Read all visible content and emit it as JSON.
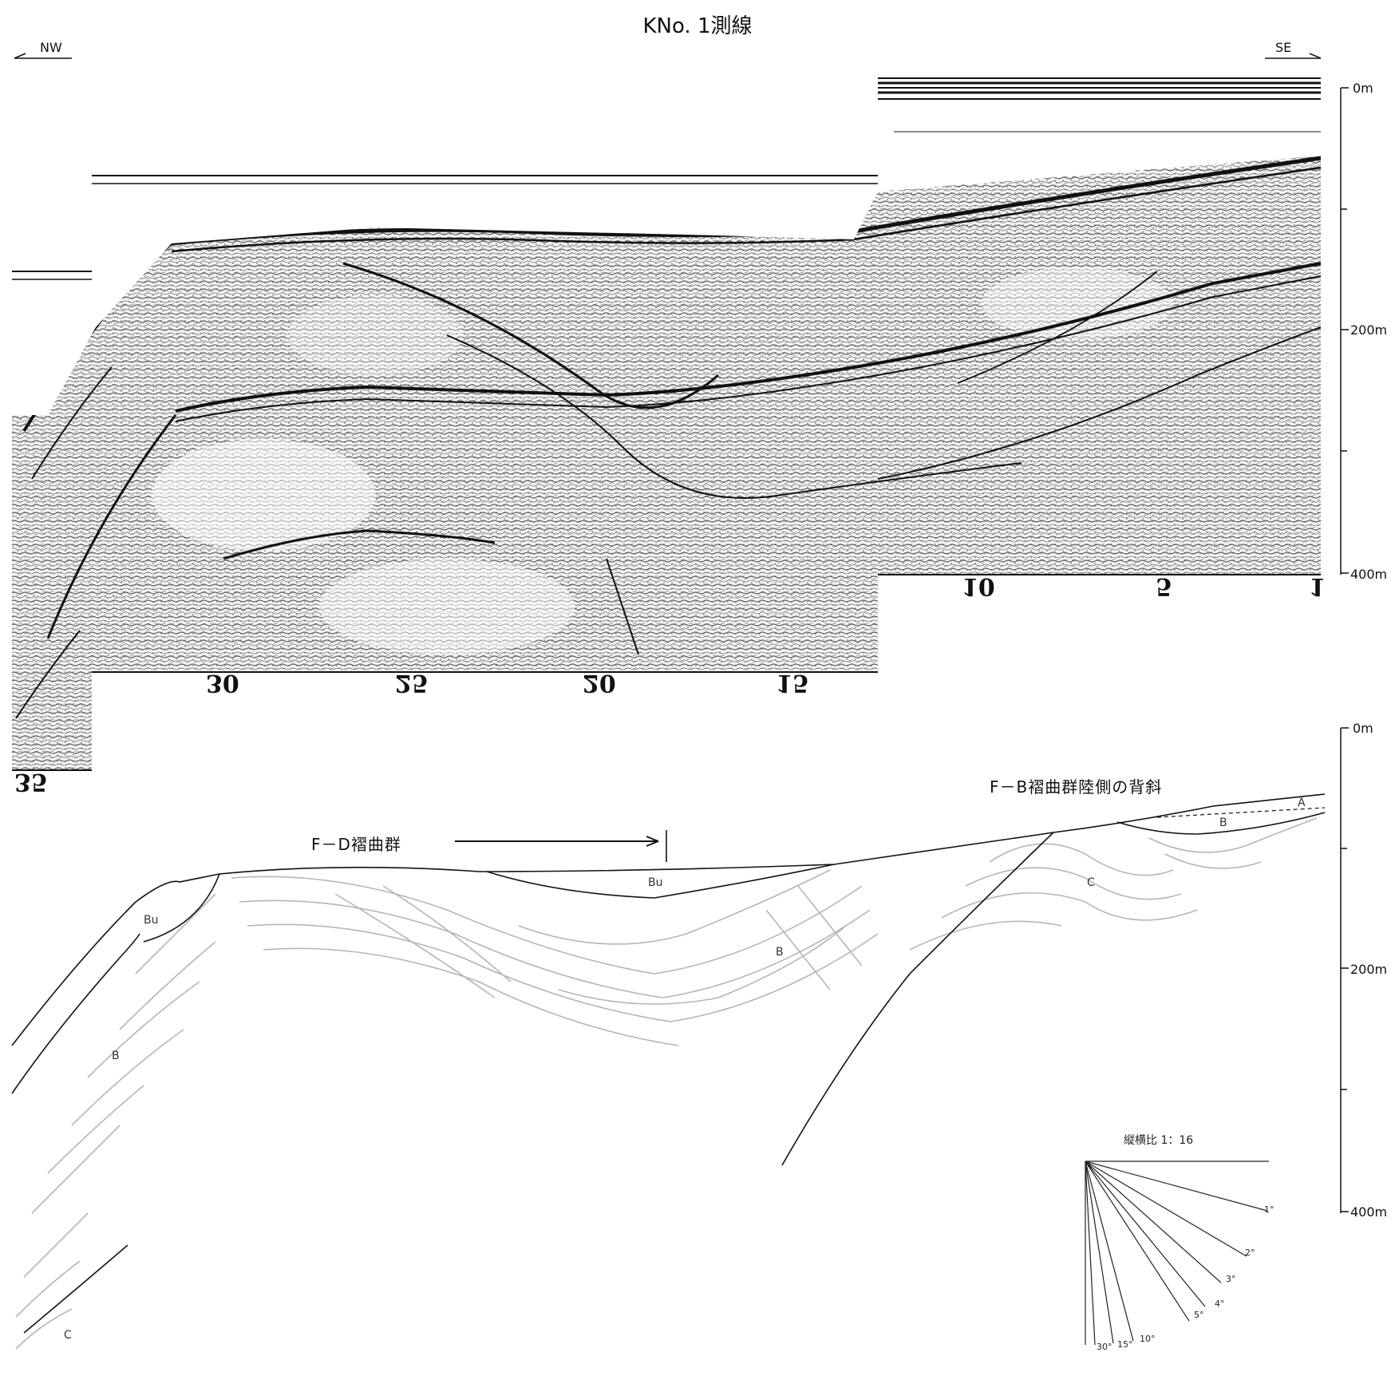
{
  "title": "KNo. 1測線",
  "direction": {
    "left": "NW",
    "right": "SE"
  },
  "depth_scale_upper": [
    "0m",
    "200m",
    "400m"
  ],
  "depth_scale_lower": [
    "0m",
    "200m",
    "400m"
  ],
  "shot_points": [
    "35",
    "30",
    "25",
    "20",
    "15",
    "10",
    "5",
    "1"
  ],
  "annotations": {
    "fd_fold_group": "F－D褶曲群",
    "fb_anticline": "F－B褶曲群陸側の背斜"
  },
  "units": {
    "bu_left": "Bu",
    "bu_center": "Bu",
    "b_left": "B",
    "b_center": "B",
    "b_right": "B",
    "c_right": "C",
    "c_left": "C",
    "a_right": "A"
  },
  "aspect_legend": {
    "title": "縦横比 1：16",
    "angles": [
      "1°",
      "2°",
      "3°",
      "4°",
      "5°",
      "10°",
      "15°",
      "30°"
    ]
  },
  "colors": {
    "ink": "#111111",
    "strata": "#b5b5b5",
    "noise": "#3a3a3a"
  }
}
